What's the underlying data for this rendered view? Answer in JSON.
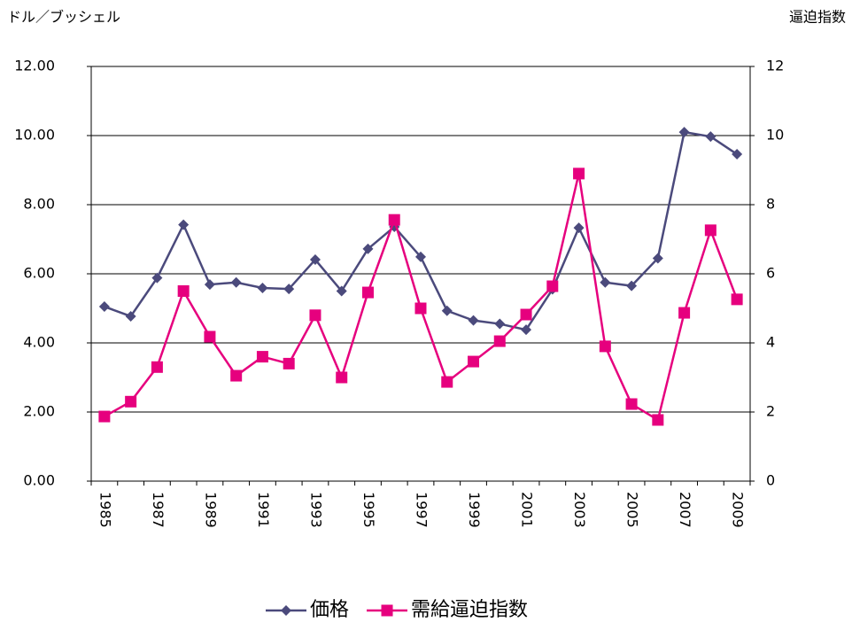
{
  "chart_data": {
    "type": "line",
    "y_label": "ドル／ブッシェル",
    "y2_label": "逼迫指数",
    "categories": [
      "1985",
      null,
      "1987",
      null,
      "1989",
      null,
      "1991",
      null,
      "1993",
      null,
      "1995",
      null,
      "1997",
      null,
      "1999",
      null,
      "2001",
      null,
      "2003",
      null,
      "2005",
      null,
      "2007",
      null,
      "2009"
    ],
    "series": [
      {
        "name": "価格",
        "color": "#4b4a7c",
        "marker": "diamond",
        "values": [
          5.05,
          4.77,
          5.88,
          7.42,
          5.69,
          5.75,
          5.59,
          5.56,
          6.41,
          5.5,
          6.72,
          7.36,
          6.49,
          4.93,
          4.65,
          4.55,
          4.38,
          5.55,
          7.33,
          5.75,
          5.65,
          6.45,
          10.1,
          9.97,
          9.46
        ]
      },
      {
        "name": "需給逼迫指数",
        "color": "#e6007e",
        "marker": "square",
        "axis": "y2",
        "values": [
          1.87,
          2.3,
          3.3,
          5.5,
          4.18,
          3.05,
          3.6,
          3.4,
          4.8,
          3.0,
          5.46,
          7.56,
          5.0,
          2.87,
          3.46,
          4.05,
          4.82,
          5.64,
          8.9,
          3.9,
          2.23,
          1.77,
          4.87,
          7.26,
          5.26
        ]
      }
    ],
    "ylim": [
      0,
      12
    ],
    "yticks": [
      {
        "value": 0,
        "label": "0.00"
      },
      {
        "value": 2,
        "label": "2.00"
      },
      {
        "value": 4,
        "label": "4.00"
      },
      {
        "value": 6,
        "label": "6.00"
      },
      {
        "value": 8,
        "label": "8.00"
      },
      {
        "value": 10,
        "label": "10.00"
      },
      {
        "value": 12,
        "label": "12.00"
      }
    ],
    "y2lim": [
      0,
      12
    ],
    "y2ticks": [
      0,
      2,
      4,
      6,
      8,
      10,
      12
    ],
    "grid": true,
    "legend": "bottom"
  }
}
